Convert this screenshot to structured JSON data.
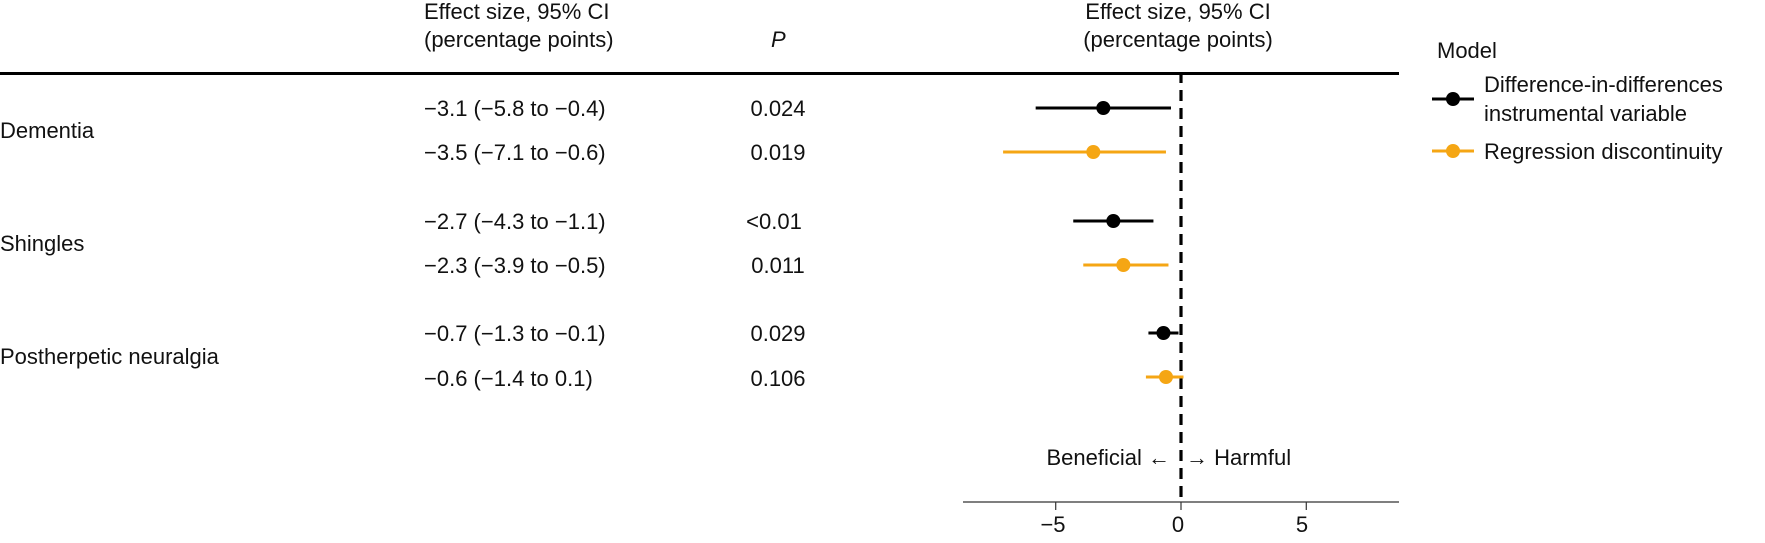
{
  "table": {
    "effect_header_line1": "Effect size, 95% CI",
    "effect_header_line2": "(percentage points)",
    "p_header": "P",
    "rows": [
      {
        "outcome": "Dementia",
        "estimates": [
          {
            "model": "did",
            "ci_text": "−3.1 (−5.8 to −0.4)",
            "p": "0.024"
          },
          {
            "model": "rd",
            "ci_text": "−3.5 (−7.1 to −0.6)",
            "p": "0.019"
          }
        ]
      },
      {
        "outcome": "Shingles",
        "estimates": [
          {
            "model": "did",
            "ci_text": "−2.7 (−4.3 to −1.1)",
            "p": "<0.01"
          },
          {
            "model": "rd",
            "ci_text": "−2.3 (−3.9 to −0.5)",
            "p": "0.011"
          }
        ]
      },
      {
        "outcome": "Postherpetic neuralgia",
        "estimates": [
          {
            "model": "did",
            "ci_text": "−0.7 (−1.3 to −0.1)",
            "p": "0.029"
          },
          {
            "model": "rd",
            "ci_text": "−0.6 (−1.4 to  0.1)",
            "p": "0.106"
          }
        ]
      }
    ]
  },
  "chart_data": {
    "type": "forest",
    "header_line1": "Effect size, 95% CI",
    "header_line2": "(percentage points)",
    "x_ticks": [
      -5,
      0,
      5
    ],
    "x_tick_labels": [
      "−5",
      "0",
      "5"
    ],
    "xlim": [
      -8.7,
      8.7
    ],
    "reference_line": 0,
    "annotation_left": "Beneficial ←",
    "annotation_right": "→ Harmful",
    "series": [
      {
        "key": "did",
        "name_line1": "Difference-in-differences",
        "name_line2": "instrumental variable",
        "color": "#000000",
        "points": [
          {
            "outcome": "Dementia",
            "est": -3.1,
            "lo": -5.8,
            "hi": -0.4
          },
          {
            "outcome": "Shingles",
            "est": -2.7,
            "lo": -4.3,
            "hi": -1.1
          },
          {
            "outcome": "Postherpetic neuralgia",
            "est": -0.7,
            "lo": -1.3,
            "hi": -0.1
          }
        ]
      },
      {
        "key": "rd",
        "name_line1": "Regression discontinuity",
        "name_line2": "",
        "color": "#f5a614",
        "points": [
          {
            "outcome": "Dementia",
            "est": -3.5,
            "lo": -7.1,
            "hi": -0.6
          },
          {
            "outcome": "Shingles",
            "est": -2.3,
            "lo": -3.9,
            "hi": -0.5
          },
          {
            "outcome": "Postherpetic neuralgia",
            "est": -0.6,
            "lo": -1.4,
            "hi": 0.1
          }
        ]
      }
    ],
    "legend": {
      "title": "Model",
      "position": "right"
    }
  }
}
